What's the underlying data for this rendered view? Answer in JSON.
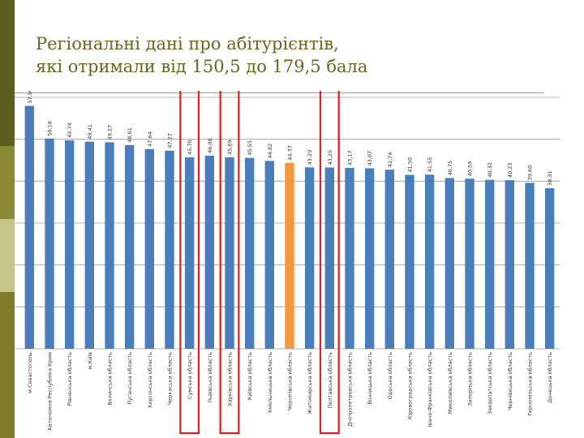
{
  "slide": {
    "title_line1": "Регіональні дані про абітурієнтів,",
    "title_line2": "які отримали від 150,5 до 179,5 бала",
    "colors": {
      "sidebar": [
        "#5c5c1f",
        "#8a8a36",
        "#c4c48a",
        "#7c7c2a"
      ],
      "title": "#6b6320",
      "bar": "#4a7ebb",
      "highlight_bar": "#f7963c",
      "highlight_frame": "#e02020"
    }
  },
  "chart_data": {
    "type": "bar",
    "categories": [
      "м.Севастополь",
      "Автономна Республіка Крим",
      "Рівненська область",
      "м.Київ",
      "Волинська область",
      "Луганська область",
      "Херсонська область",
      "Черкаська область",
      "Сумська область",
      "Львівська область",
      "Харківська область",
      "Київська область",
      "Хмельницька область",
      "Чернігівська область",
      "Житомирська область",
      "Полтавська область",
      "Дніпропетровська область",
      "Вінницька область",
      "Одеська область",
      "Кіровоградська область",
      "Івано-Франківська область",
      "Миколаївська область",
      "Запорізька область",
      "Закарпатська область",
      "Чернівецька область",
      "Тернопільська область",
      "Донецька область"
    ],
    "values": [
      57.96,
      50.18,
      49.74,
      49.41,
      49.27,
      48.61,
      47.64,
      47.27,
      45.7,
      46.08,
      45.69,
      45.55,
      44.82,
      44.37,
      43.29,
      43.25,
      43.17,
      43.07,
      42.74,
      41.5,
      41.55,
      40.75,
      40.59,
      40.32,
      40.23,
      39.6,
      38.31
    ],
    "value_labels": [
      "57,96",
      "50,18",
      "49,74",
      "49,41",
      "49,27",
      "48,61",
      "47,64",
      "47,27",
      "45,70",
      "46,08",
      "45,69",
      "45,55",
      "44,82",
      "44,37",
      "43,29",
      "43,25",
      "43,17",
      "43,07",
      "42,74",
      "41,50",
      "41,55",
      "40,75",
      "40,59",
      "40,32",
      "40,23",
      "39,60",
      "38,31"
    ],
    "highlighted_category": "Чернігівська область",
    "framed_categories": [
      "Сумська область",
      "Харківська область",
      "Полтавська область"
    ],
    "ylim": [
      0,
      60
    ],
    "y_gridline_step": 10,
    "grid": true,
    "title": "",
    "xlabel": "",
    "ylabel": ""
  }
}
